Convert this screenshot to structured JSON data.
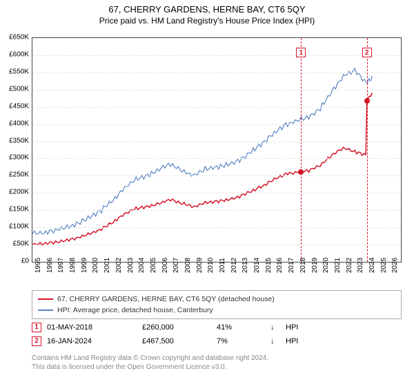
{
  "title": "67, CHERRY GARDENS, HERNE BAY, CT6 5QY",
  "subtitle": "Price paid vs. HM Land Registry's House Price Index (HPI)",
  "chart": {
    "type": "line",
    "xlim": [
      1995,
      2027
    ],
    "ylim": [
      0,
      650000
    ],
    "ytick_step": 50000,
    "y_ticks": [
      "£0",
      "£50K",
      "£100K",
      "£150K",
      "£200K",
      "£250K",
      "£300K",
      "£350K",
      "£400K",
      "£450K",
      "£500K",
      "£550K",
      "£600K",
      "£650K"
    ],
    "x_ticks": [
      "1995",
      "1996",
      "1997",
      "1998",
      "1999",
      "2000",
      "2001",
      "2002",
      "2003",
      "2004",
      "2005",
      "2006",
      "2007",
      "2008",
      "2009",
      "2010",
      "2011",
      "2012",
      "2013",
      "2014",
      "2015",
      "2016",
      "2017",
      "2018",
      "2019",
      "2020",
      "2021",
      "2022",
      "2023",
      "2024",
      "2025",
      "2026"
    ],
    "grid_color": "#e6e6e6",
    "border_color": "#444444",
    "background_color": "#ffffff",
    "series": [
      {
        "key": "property",
        "label": "67, CHERRY GARDENS, HERNE BAY, CT6 5QY (detached house)",
        "color": "#d4152a",
        "line_width": 1.5,
        "points": [
          [
            1995,
            50000
          ],
          [
            1996,
            53000
          ],
          [
            1997,
            57000
          ],
          [
            1998,
            62000
          ],
          [
            1999,
            70000
          ],
          [
            2000,
            82000
          ],
          [
            2001,
            95000
          ],
          [
            2002,
            115000
          ],
          [
            2003,
            140000
          ],
          [
            2004,
            155000
          ],
          [
            2005,
            160000
          ],
          [
            2006,
            170000
          ],
          [
            2007,
            180000
          ],
          [
            2008,
            170000
          ],
          [
            2009,
            160000
          ],
          [
            2010,
            172000
          ],
          [
            2011,
            175000
          ],
          [
            2012,
            180000
          ],
          [
            2013,
            190000
          ],
          [
            2014,
            205000
          ],
          [
            2015,
            220000
          ],
          [
            2016,
            240000
          ],
          [
            2017,
            255000
          ],
          [
            2018,
            260000
          ],
          [
            2019,
            265000
          ],
          [
            2020,
            280000
          ],
          [
            2021,
            310000
          ],
          [
            2022,
            330000
          ],
          [
            2023,
            320000
          ],
          [
            2023.95,
            310000
          ],
          [
            2024.05,
            467500
          ],
          [
            2024.5,
            490000
          ]
        ]
      },
      {
        "key": "hpi",
        "label": "HPI: Average price, detached house, Canterbury",
        "color": "#5a84c4",
        "line_width": 1.2,
        "points": [
          [
            1995,
            82000
          ],
          [
            1996,
            85000
          ],
          [
            1997,
            92000
          ],
          [
            1998,
            100000
          ],
          [
            1999,
            112000
          ],
          [
            2000,
            130000
          ],
          [
            2001,
            150000
          ],
          [
            2002,
            180000
          ],
          [
            2003,
            215000
          ],
          [
            2004,
            240000
          ],
          [
            2005,
            250000
          ],
          [
            2006,
            268000
          ],
          [
            2007,
            285000
          ],
          [
            2008,
            265000
          ],
          [
            2009,
            250000
          ],
          [
            2010,
            270000
          ],
          [
            2011,
            275000
          ],
          [
            2012,
            282000
          ],
          [
            2013,
            295000
          ],
          [
            2014,
            320000
          ],
          [
            2015,
            345000
          ],
          [
            2016,
            375000
          ],
          [
            2017,
            398000
          ],
          [
            2018,
            410000
          ],
          [
            2019,
            420000
          ],
          [
            2020,
            445000
          ],
          [
            2021,
            495000
          ],
          [
            2022,
            540000
          ],
          [
            2023,
            555000
          ],
          [
            2024,
            520000
          ],
          [
            2024.5,
            535000
          ]
        ]
      }
    ],
    "sale_markers": [
      {
        "n": "1",
        "x": 2018.33,
        "y": 260000,
        "color": "#d4152a"
      },
      {
        "n": "2",
        "x": 2024.05,
        "y": 467500,
        "color": "#d4152a"
      }
    ],
    "marker_box_y_offset_top": 14
  },
  "legend": {
    "items": [
      {
        "color": "#d4152a",
        "label": "67, CHERRY GARDENS, HERNE BAY, CT6 5QY (detached house)"
      },
      {
        "color": "#5a84c4",
        "label": "HPI: Average price, detached house, Canterbury"
      }
    ]
  },
  "records": [
    {
      "n": "1",
      "color": "#d4152a",
      "date": "01-MAY-2018",
      "price": "£260,000",
      "pct": "41%",
      "arrow": "↓",
      "hpi": "HPI"
    },
    {
      "n": "2",
      "color": "#d4152a",
      "date": "16-JAN-2024",
      "price": "£467,500",
      "pct": "7%",
      "arrow": "↓",
      "hpi": "HPI"
    }
  ],
  "footer": {
    "line1": "Contains HM Land Registry data © Crown copyright and database right 2024.",
    "line2": "This data is licensed under the Open Government Licence v3.0."
  }
}
